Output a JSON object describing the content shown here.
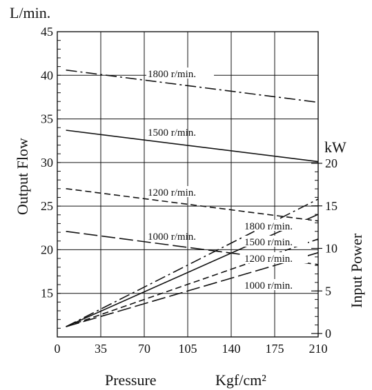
{
  "chart_data": {
    "type": "line",
    "x_axis": {
      "label": "Pressure",
      "unit": "Kgf/cm²",
      "range": [
        0,
        210
      ],
      "ticks": [
        0,
        35,
        70,
        105,
        140,
        175,
        210
      ]
    },
    "y_axis_left": {
      "label": "Output Flow",
      "unit": "L/min.",
      "range": [
        10,
        45
      ],
      "ticks": [
        15,
        20,
        25,
        30,
        35,
        40,
        45
      ]
    },
    "y_axis_right": {
      "label": "Input Power",
      "unit": "kW",
      "range": [
        0,
        20
      ],
      "ticks": [
        0,
        5,
        10,
        15,
        20
      ]
    },
    "grid": true,
    "series": [
      {
        "name": "1800 r/min.",
        "quantity": "Output Flow",
        "axis": "left",
        "dash": "dashdot",
        "points": [
          [
            7,
            40.6
          ],
          [
            210,
            36.9
          ]
        ]
      },
      {
        "name": "1500 r/min.",
        "quantity": "Output Flow",
        "axis": "left",
        "dash": "solid",
        "points": [
          [
            7,
            33.7
          ],
          [
            210,
            30.1
          ]
        ]
      },
      {
        "name": "1200 r/min.",
        "quantity": "Output Flow",
        "axis": "left",
        "dash": "dashed",
        "points": [
          [
            7,
            27.0
          ],
          [
            210,
            23.3
          ]
        ]
      },
      {
        "name": "1000 r/min.",
        "quantity": "Output Flow",
        "axis": "left",
        "dash": "longdash",
        "points": [
          [
            7,
            22.1
          ],
          [
            210,
            18.3
          ]
        ]
      },
      {
        "name": "1800 r/min.",
        "quantity": "Input Power",
        "axis": "right",
        "dash": "dashdot",
        "points": [
          [
            7,
            0.8
          ],
          [
            210,
            15.8
          ]
        ]
      },
      {
        "name": "1500 r/min.",
        "quantity": "Input Power",
        "axis": "right",
        "dash": "solid",
        "points": [
          [
            7,
            0.8
          ],
          [
            210,
            14.0
          ]
        ]
      },
      {
        "name": "1200 r/min.",
        "quantity": "Input Power",
        "axis": "right",
        "dash": "dashed",
        "points": [
          [
            7,
            0.8
          ],
          [
            210,
            11.1
          ]
        ]
      },
      {
        "name": "1000 r/min.",
        "quantity": "Input Power",
        "axis": "right",
        "dash": "longdash",
        "points": [
          [
            7,
            0.8
          ],
          [
            210,
            9.5
          ]
        ]
      }
    ]
  },
  "labels": {
    "y_left_unit": "L/min.",
    "y_left_title": "Output Flow",
    "y_right_unit": "kW",
    "y_right_title": "Input Power",
    "x_title": "Pressure",
    "x_unit": "Kgf/cm²"
  },
  "series_labels": {
    "flow": [
      "1800 r/min.",
      "1500 r/min.",
      "1200 r/min.",
      "1000 r/min."
    ],
    "power": [
      "1800 r/min.",
      "1500 r/min.",
      "1200 r/min.",
      "1000 r/min."
    ]
  },
  "colors": {
    "line": "#111111",
    "background": "#ffffff"
  }
}
